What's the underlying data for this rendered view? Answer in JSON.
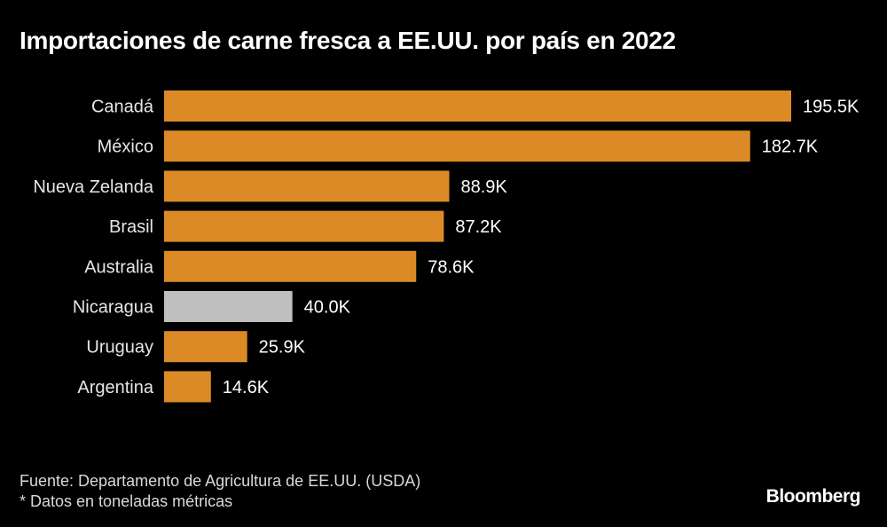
{
  "chart_data": {
    "type": "bar",
    "orientation": "horizontal",
    "title": "Importaciones de carne fresca a EE.UU. por país en 2022",
    "categories": [
      "Canadá",
      "México",
      "Nueva Zelanda",
      "Brasil",
      "Australia",
      "Nicaragua",
      "Uruguay",
      "Argentina"
    ],
    "values": [
      195.5,
      182.7,
      88.9,
      87.2,
      78.6,
      40.0,
      25.9,
      14.6
    ],
    "value_labels": [
      "195.5K",
      "182.7K",
      "88.9K",
      "87.2K",
      "78.6K",
      "40.0K",
      "25.9K",
      "14.6K"
    ],
    "highlight": [
      false,
      false,
      false,
      false,
      false,
      true,
      false,
      false
    ],
    "colors": {
      "default": "#dc8a26",
      "highlight": "#bfbfbf",
      "background": "#000000"
    },
    "xlabel": "",
    "ylabel": "",
    "unit": "toneladas métricas (miles)",
    "xlim": [
      0,
      195.5
    ],
    "grid": false,
    "legend": "none"
  },
  "footer": {
    "source": "Fuente: Departamento de Agricultura de EE.UU. (USDA)",
    "note": "* Datos en toneladas métricas",
    "brand": "Bloomberg"
  }
}
